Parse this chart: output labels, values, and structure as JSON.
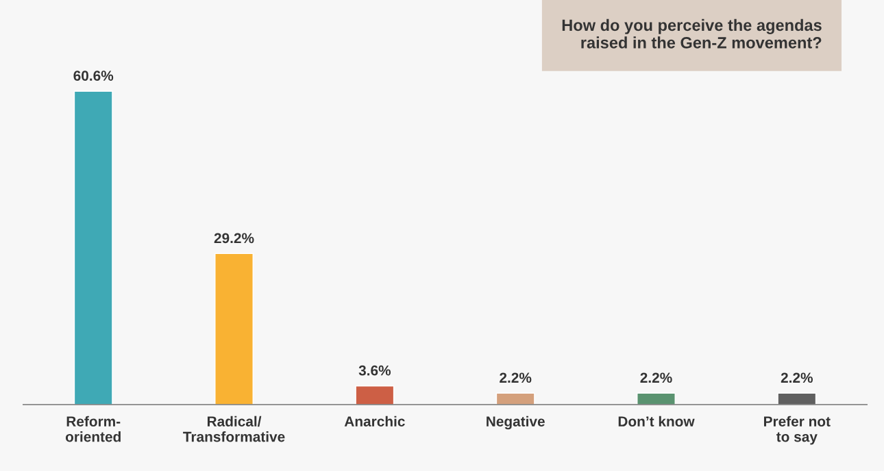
{
  "chart_data": {
    "type": "bar",
    "title": "How do you perceive the agendas\nraised in the Gen-Z movement?",
    "categories": [
      "Reform-\noriented",
      "Radical/\nTransformative",
      "Anarchic",
      "Negative",
      "Don’t know",
      "Prefer not\nto say"
    ],
    "values": [
      60.6,
      29.2,
      3.6,
      2.2,
      2.2,
      2.2
    ],
    "colors": [
      "#3fa9b5",
      "#f9b233",
      "#cd5f45",
      "#d4a07c",
      "#5a9370",
      "#606060"
    ],
    "value_labels": [
      "60.6%",
      "29.2%",
      "3.6%",
      "2.2%",
      "2.2%",
      "2.2%"
    ],
    "tick_labels": "x",
    "legend": false,
    "grid": false
  }
}
